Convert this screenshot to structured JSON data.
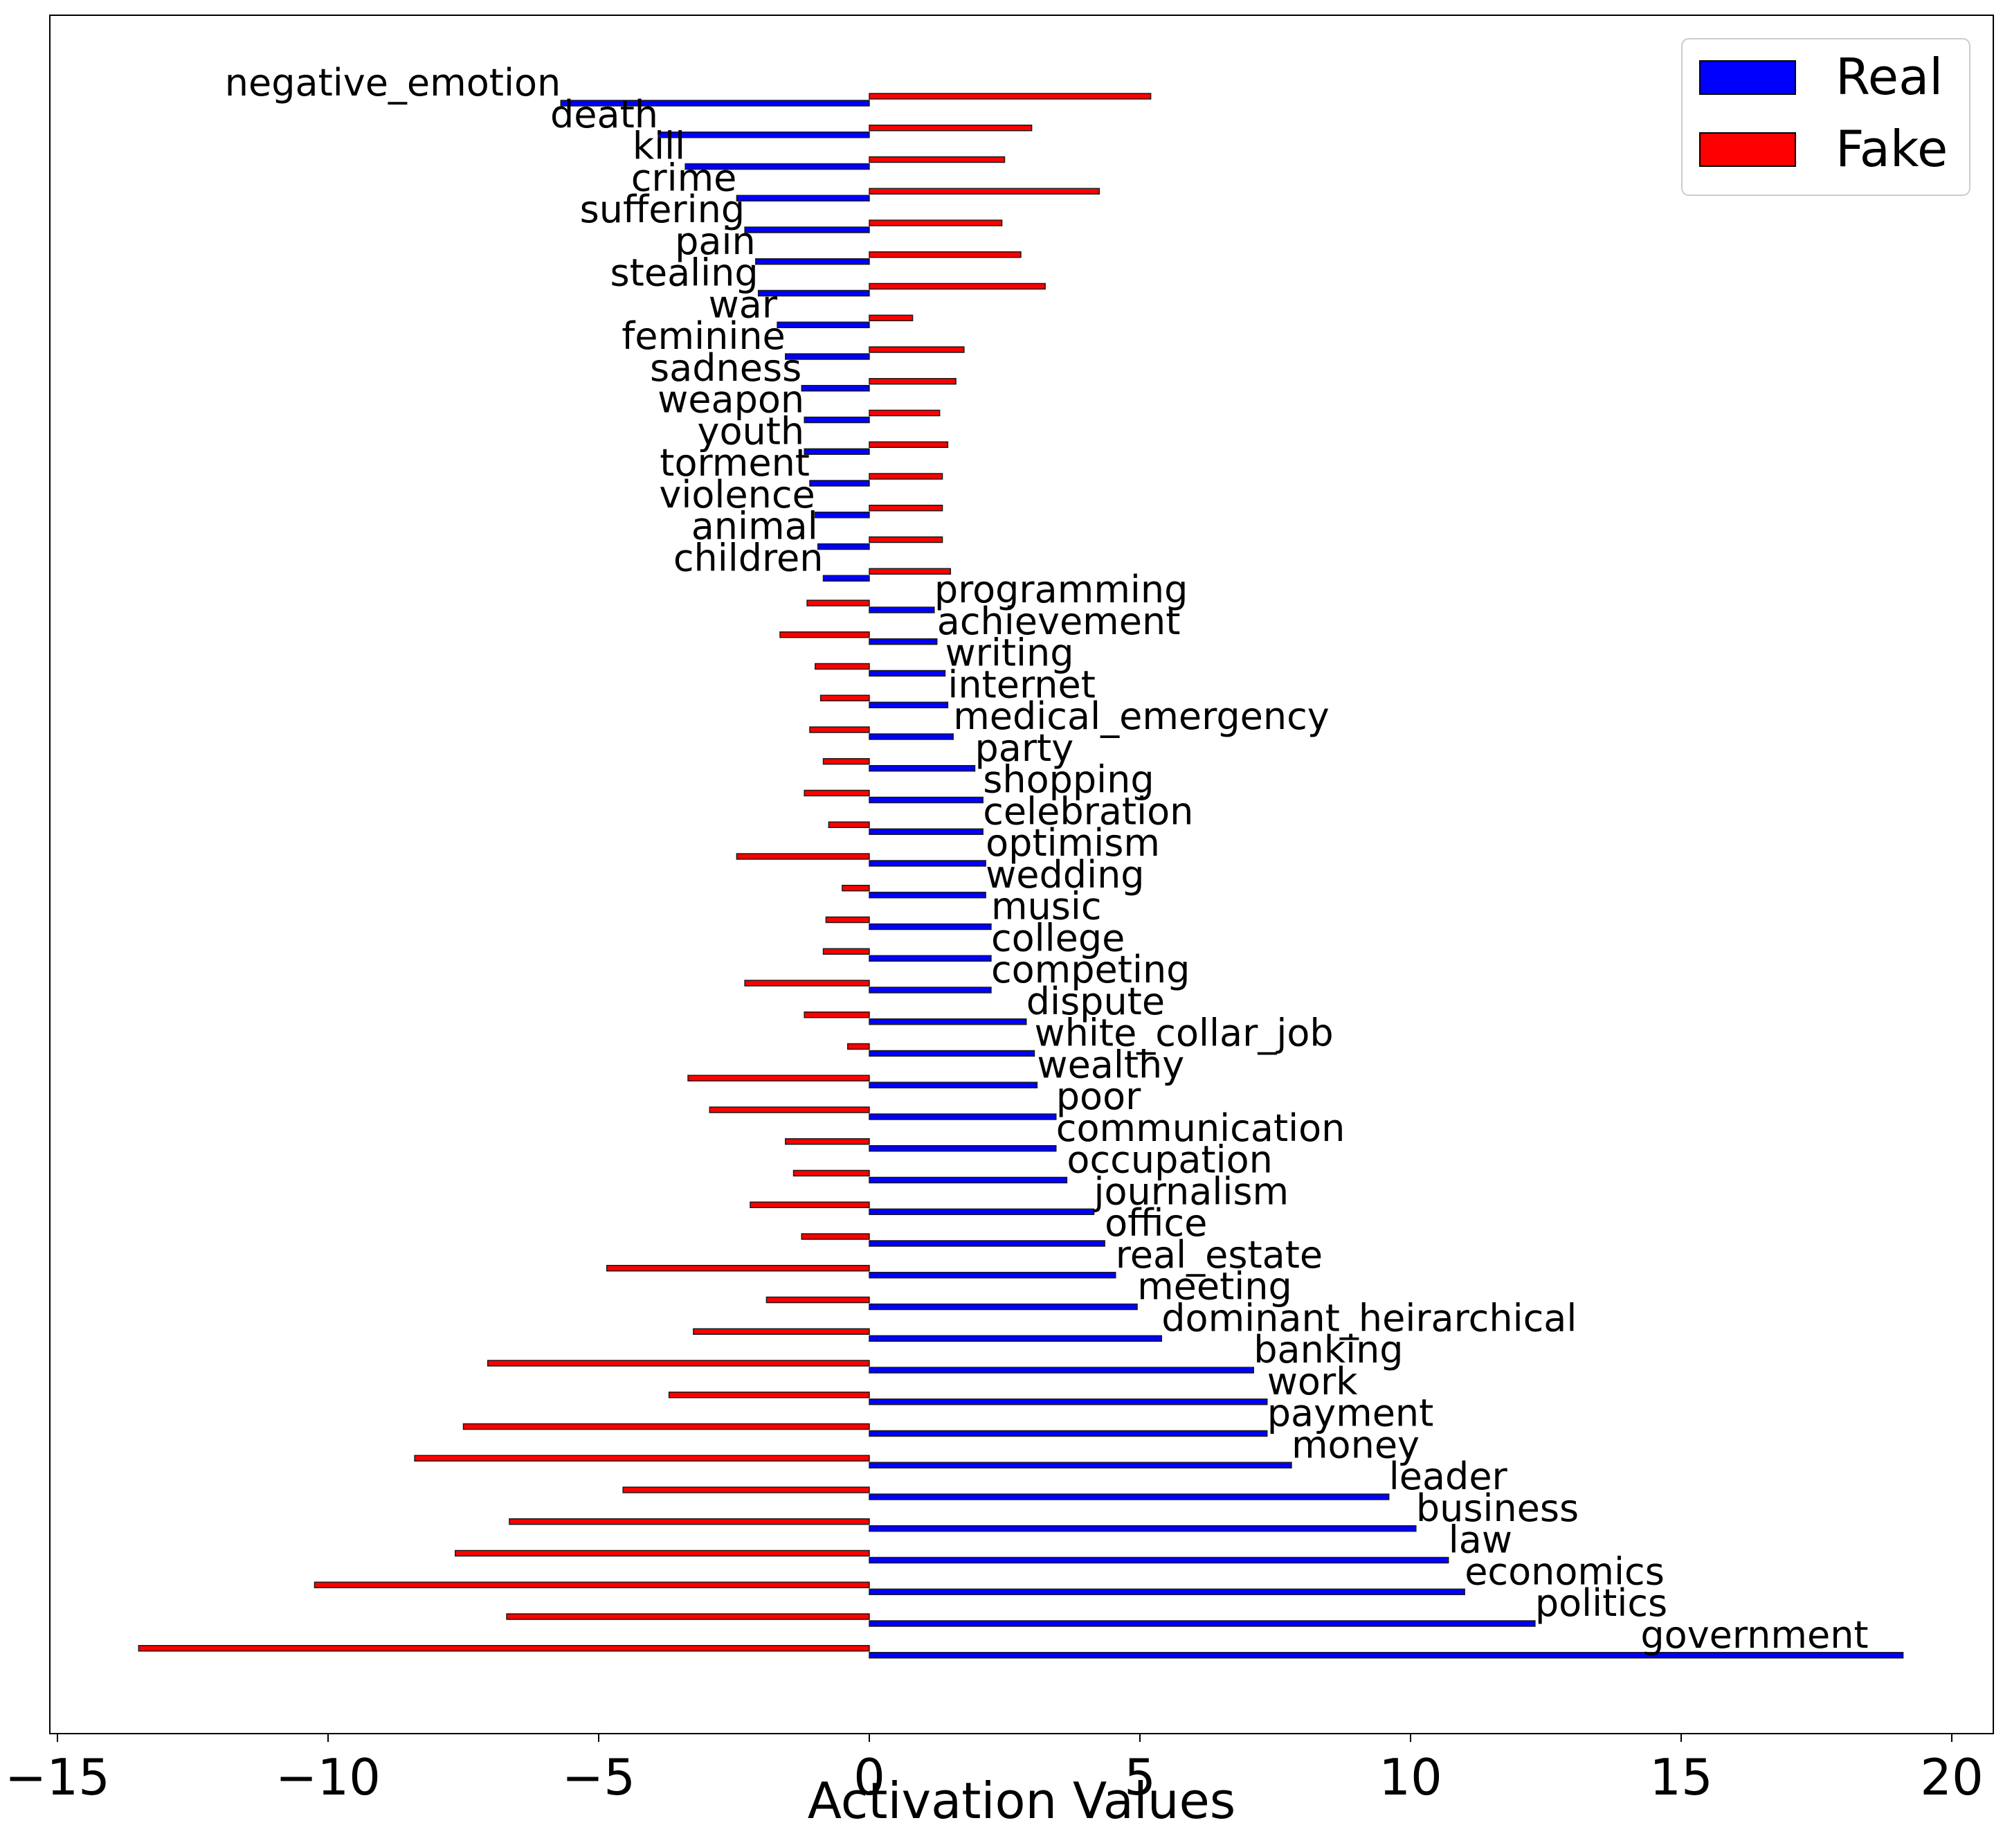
{
  "chart_data": {
    "type": "bar",
    "orientation": "horizontal",
    "title": "",
    "xlabel": "Activation Values",
    "ylabel": "",
    "xlim": [
      -15,
      21
    ],
    "xticks": [
      -15,
      -10,
      -5,
      0,
      5,
      10,
      15,
      20
    ],
    "xtick_labels": [
      "−15",
      "−10",
      "−5",
      "0",
      "5",
      "10",
      "15",
      "20"
    ],
    "grid": false,
    "legend_position": "top-right",
    "categories": [
      "negative_emotion",
      "death",
      "kill",
      "crime",
      "suffering",
      "pain",
      "stealing",
      "war",
      "feminine",
      "sadness",
      "weapon",
      "youth",
      "torment",
      "violence",
      "animal",
      "children",
      "programming",
      "achievement",
      "writing",
      "internet",
      "medical_emergency",
      "party",
      "shopping",
      "celebration",
      "optimism",
      "wedding",
      "music",
      "college",
      "competing",
      "dispute",
      "white_collar_job",
      "wealthy",
      "poor",
      "communication",
      "occupation",
      "journalism",
      "office",
      "real_estate",
      "meeting",
      "dominant_heirarchical",
      "banking",
      "work",
      "payment",
      "money",
      "leader",
      "business",
      "law",
      "economics",
      "politics",
      "government"
    ],
    "series": [
      {
        "name": "Real",
        "color": "#0000ff",
        "values": [
          -5.7,
          -3.9,
          -3.4,
          -2.45,
          -2.3,
          -2.1,
          -2.05,
          -1.7,
          -1.55,
          -1.25,
          -1.2,
          -1.2,
          -1.1,
          -1.0,
          -0.95,
          -0.85,
          1.2,
          1.25,
          1.4,
          1.45,
          1.55,
          1.95,
          2.1,
          2.1,
          2.15,
          2.15,
          2.25,
          2.25,
          2.25,
          2.9,
          3.05,
          3.1,
          3.45,
          3.45,
          3.65,
          4.15,
          4.35,
          4.55,
          4.95,
          5.4,
          7.1,
          7.35,
          7.35,
          7.8,
          9.6,
          10.1,
          10.7,
          11.0,
          12.3,
          19.1
        ]
      },
      {
        "name": "Fake",
        "color": "#ff0000",
        "values": [
          5.2,
          3.0,
          2.5,
          4.25,
          2.45,
          2.8,
          3.25,
          0.8,
          1.75,
          1.6,
          1.3,
          1.45,
          1.35,
          1.35,
          1.35,
          1.5,
          -1.15,
          -1.65,
          -1.0,
          -0.9,
          -1.1,
          -0.85,
          -1.2,
          -0.75,
          -2.45,
          -0.5,
          -0.8,
          -0.85,
          -2.3,
          -1.2,
          -0.4,
          -3.35,
          -2.95,
          -1.55,
          -1.4,
          -2.2,
          -1.25,
          -4.85,
          -1.9,
          -3.25,
          -7.05,
          -3.7,
          -7.5,
          -8.4,
          -4.55,
          -6.65,
          -7.65,
          -10.25,
          -6.7,
          -13.5
        ]
      }
    ]
  }
}
